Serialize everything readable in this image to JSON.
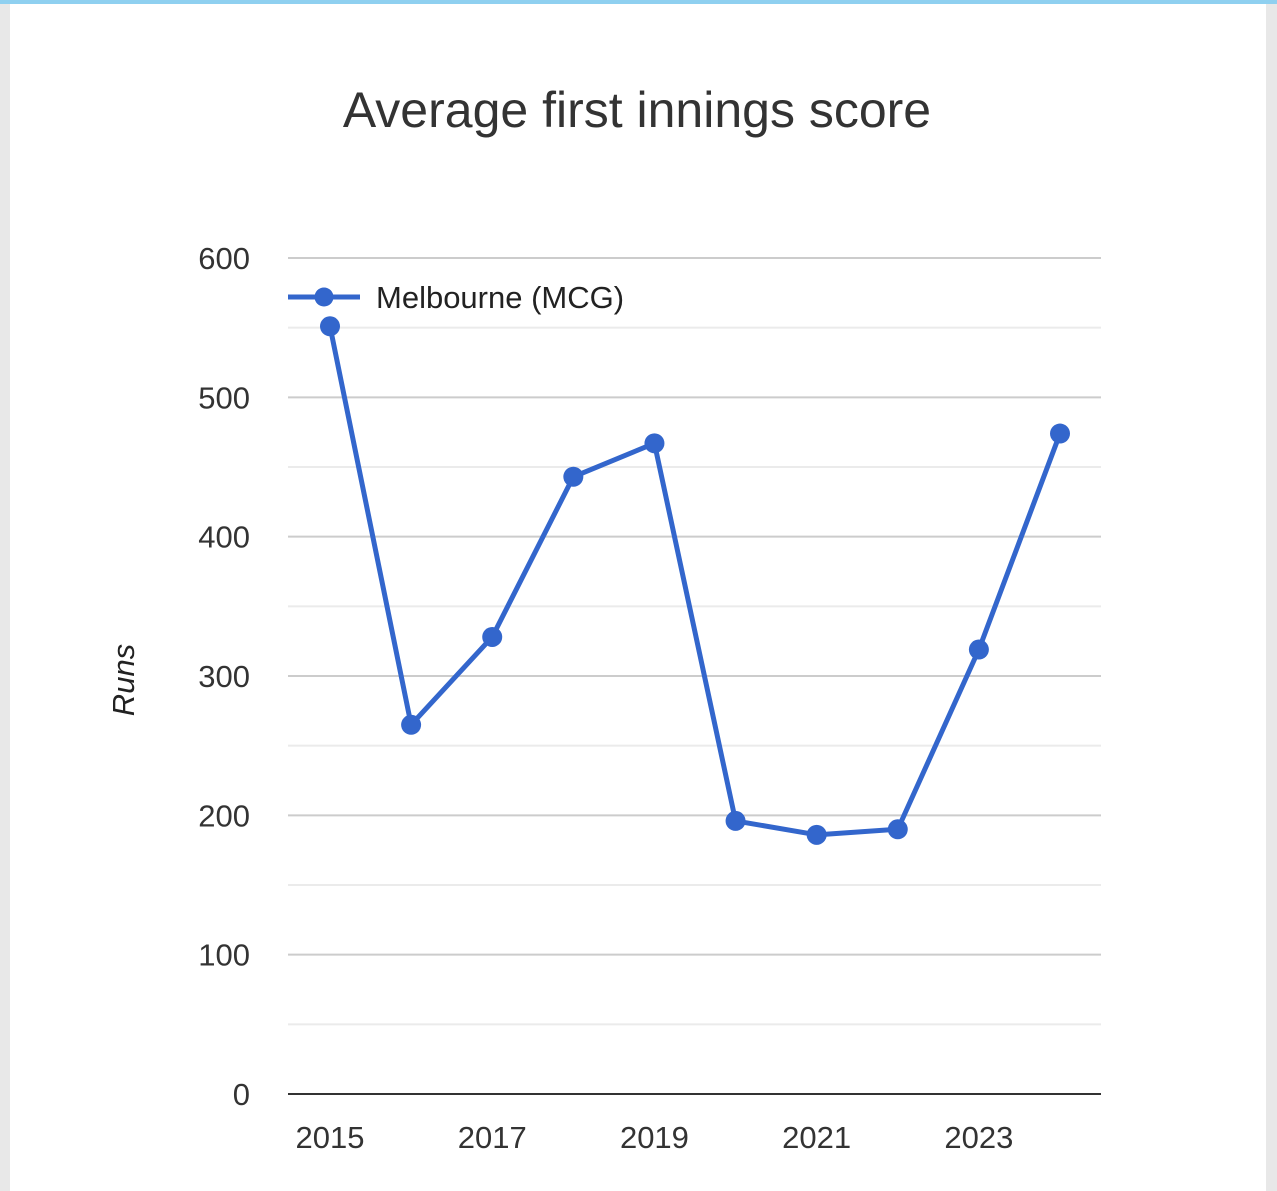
{
  "chart_data": {
    "type": "line",
    "title": "Average first innings score",
    "ylabel": "Runs",
    "xlabel": "",
    "x": [
      2015,
      2016,
      2017,
      2018,
      2019,
      2020,
      2021,
      2022,
      2023,
      2024
    ],
    "x_tick_labels": [
      "2015",
      "2017",
      "2019",
      "2021",
      "2023"
    ],
    "y_tick_labels": [
      "0",
      "100",
      "200",
      "300",
      "400",
      "500",
      "600"
    ],
    "ylim": [
      0,
      600
    ],
    "grid": true,
    "legend_position": "top-left",
    "series": [
      {
        "name": "Melbourne (MCG)",
        "color": "#3366cc",
        "values": [
          551,
          265,
          328,
          443,
          467,
          196,
          186,
          190,
          319,
          474
        ]
      }
    ]
  }
}
